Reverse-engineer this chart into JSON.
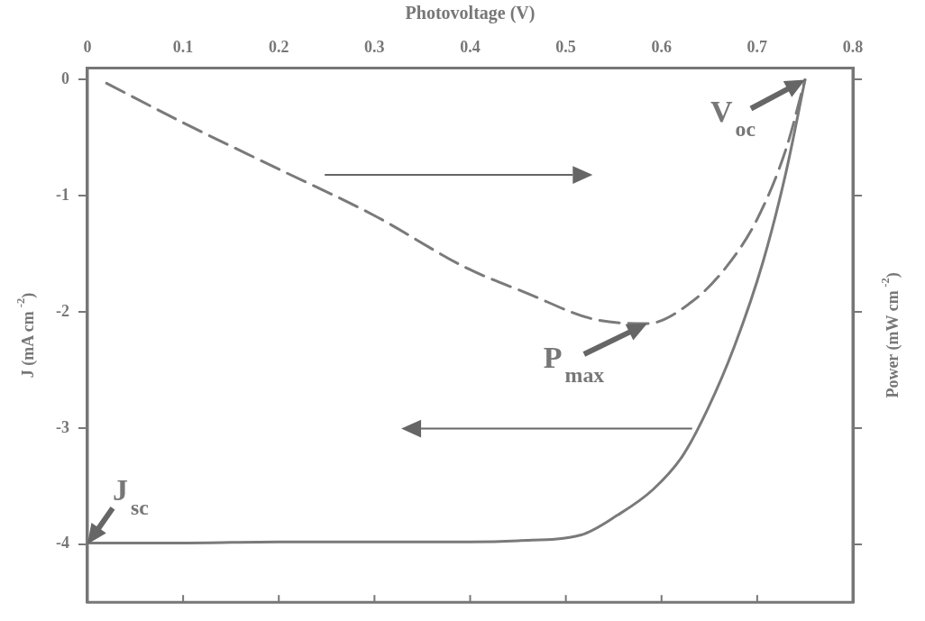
{
  "chart_data": {
    "type": "line",
    "xlabel": "Photovoltage (V)",
    "ylabel": "J (mA cm$^{-2}$)",
    "y2label": "Power (mW cm$^{-2}$)",
    "xlim": [
      0,
      0.8
    ],
    "xticks": [
      0,
      0.1,
      0.2,
      0.3,
      0.4,
      0.5,
      0.6,
      0.7,
      0.8
    ],
    "ylim": [
      -4.5,
      0.1
    ],
    "yticks": [
      0,
      -1,
      -2,
      -3,
      -4
    ],
    "grid": false,
    "legend": false,
    "marker": "none",
    "series": [
      {
        "color": "#7a7a7a",
        "line_style": "solid",
        "x": [
          0,
          0.1,
          0.2,
          0.3,
          0.4,
          0.45,
          0.516,
          0.554,
          0.591,
          0.622,
          0.648,
          0.676,
          0.706,
          0.73,
          0.75
        ],
        "values": [
          -3.99,
          -3.99,
          -3.98,
          -3.98,
          -3.98,
          -3.97,
          -3.92,
          -3.75,
          -3.53,
          -3.24,
          -2.84,
          -2.3,
          -1.57,
          -0.8,
          0
        ]
      },
      {
        "color": "#7a7a7a",
        "line_style": "dashed",
        "x": [
          0.02,
          0.1,
          0.2,
          0.3,
          0.396,
          0.46,
          0.528,
          0.585,
          0.632,
          0.667,
          0.7,
          0.73,
          0.75
        ],
        "values": [
          -0.03,
          -0.37,
          -0.77,
          -1.17,
          -1.62,
          -1.84,
          -2.06,
          -2.1,
          -1.91,
          -1.62,
          -1.2,
          -0.6,
          0
        ]
      }
    ],
    "annotations": [
      {
        "text": "V$_{oc}$",
        "x": 0.75,
        "y": 0
      },
      {
        "text": "P$_{max}$",
        "x": 0.585,
        "y": -2.1
      },
      {
        "text": "J$_{sc}$",
        "x": 0,
        "y": -4
      }
    ]
  }
}
